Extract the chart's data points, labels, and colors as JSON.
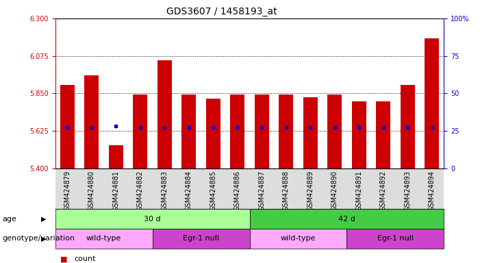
{
  "title": "GDS3607 / 1458193_at",
  "samples": [
    "GSM424879",
    "GSM424880",
    "GSM424881",
    "GSM424882",
    "GSM424883",
    "GSM424884",
    "GSM424885",
    "GSM424886",
    "GSM424887",
    "GSM424888",
    "GSM424889",
    "GSM424890",
    "GSM424891",
    "GSM424892",
    "GSM424893",
    "GSM424894"
  ],
  "bar_values": [
    5.9,
    5.96,
    5.54,
    5.845,
    6.05,
    5.845,
    5.82,
    5.845,
    5.845,
    5.845,
    5.825,
    5.845,
    5.8,
    5.8,
    5.9,
    6.18
  ],
  "dot_values": [
    5.645,
    5.645,
    5.655,
    5.645,
    5.645,
    5.645,
    5.645,
    5.645,
    5.645,
    5.645,
    5.645,
    5.645,
    5.645,
    5.645,
    5.645,
    5.645
  ],
  "ymin": 5.4,
  "ymax": 6.3,
  "yticks": [
    5.4,
    5.625,
    5.85,
    6.075,
    6.3
  ],
  "right_yticks": [
    0,
    25,
    50,
    75,
    100
  ],
  "right_yticklabels": [
    "0",
    "25",
    "50",
    "75",
    "100%"
  ],
  "bar_color": "#cc0000",
  "dot_color": "#0000cc",
  "bar_width": 0.6,
  "grid_color": "#000000",
  "grid_levels": [
    5.625,
    5.85,
    6.075
  ],
  "age_groups": [
    {
      "label": "30 d",
      "start": 0,
      "end": 8,
      "color": "#aaff99"
    },
    {
      "label": "42 d",
      "start": 8,
      "end": 16,
      "color": "#44cc44"
    }
  ],
  "genotype_groups": [
    {
      "label": "wild-type",
      "start": 0,
      "end": 4,
      "color": "#ffaaff"
    },
    {
      "label": "Egr-1 null",
      "start": 4,
      "end": 8,
      "color": "#cc44cc"
    },
    {
      "label": "wild-type",
      "start": 8,
      "end": 12,
      "color": "#ffaaff"
    },
    {
      "label": "Egr-1 null",
      "start": 12,
      "end": 16,
      "color": "#cc44cc"
    }
  ],
  "legend_count_color": "#cc0000",
  "legend_dot_color": "#0000cc",
  "left_tick_color": "#cc0000",
  "right_tick_color": "#0000cc",
  "tick_fontsize": 7,
  "label_fontsize": 8,
  "title_fontsize": 10,
  "row_label_age": "age",
  "row_label_geno": "genotype/variation",
  "xticklabel_bg": "#dddddd"
}
